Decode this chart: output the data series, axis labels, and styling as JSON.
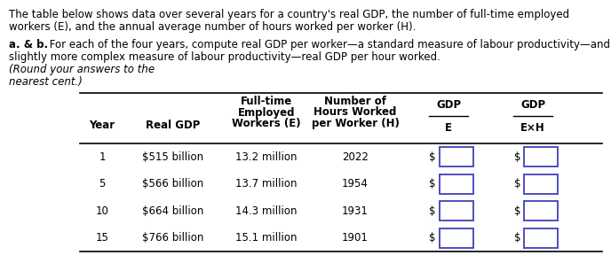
{
  "rows": [
    [
      "1",
      "$515 billion",
      "13.2 million",
      "2022"
    ],
    [
      "5",
      "$566 billion",
      "13.7 million",
      "1954"
    ],
    [
      "10",
      "$664 billion",
      "14.3 million",
      "1931"
    ],
    [
      "15",
      "$766 billion",
      "15.1 million",
      "1901"
    ]
  ],
  "input_box_color": "#4040bb",
  "background": "#ffffff",
  "font_size": 8.5,
  "font_family": "DejaVu Sans"
}
